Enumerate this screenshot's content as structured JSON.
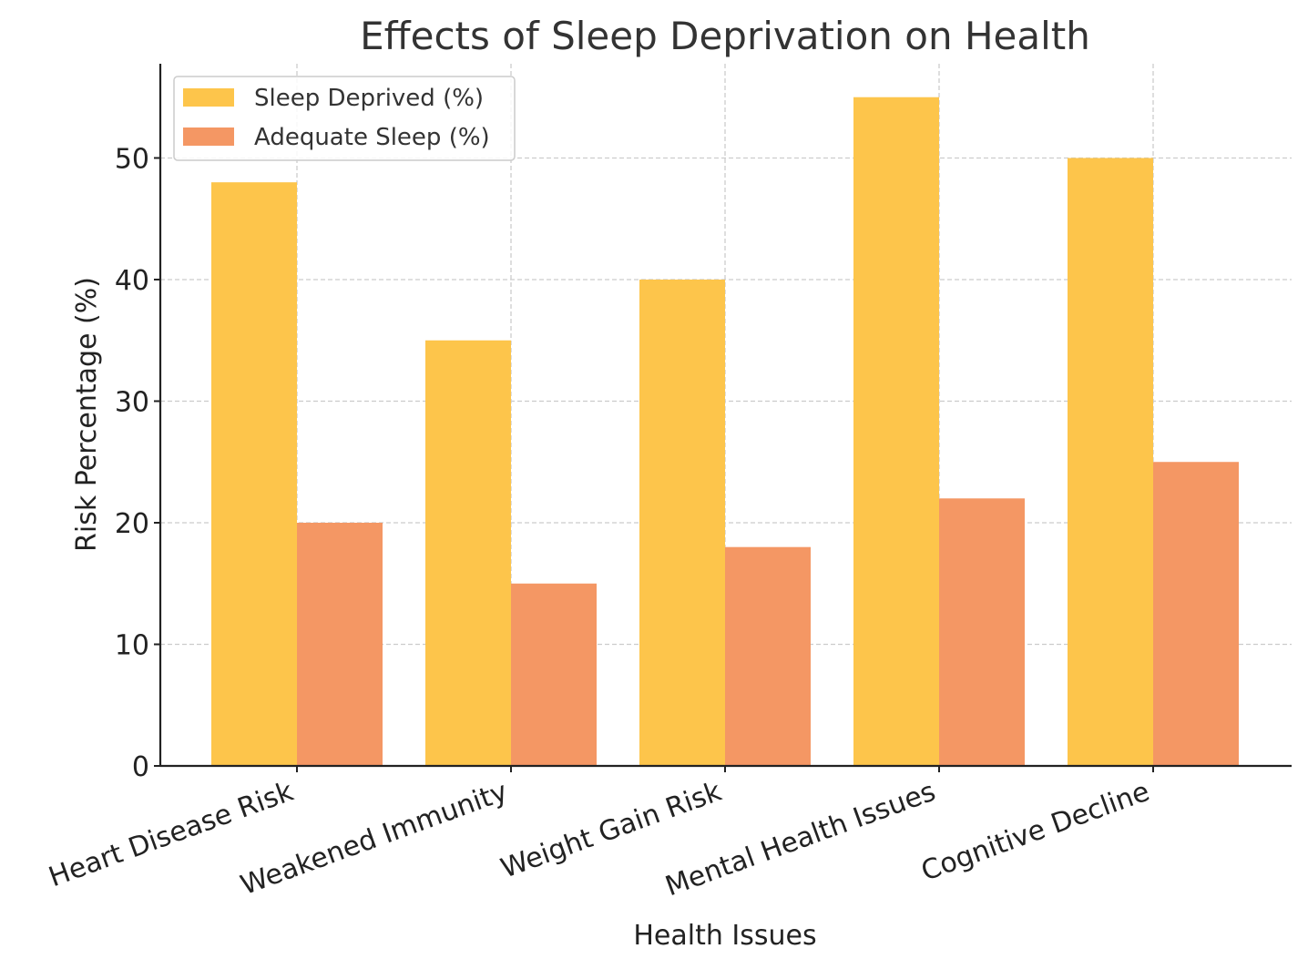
{
  "chart_data": {
    "type": "bar",
    "title": "Effects of Sleep Deprivation on Health",
    "xlabel": "Health Issues",
    "ylabel": "Risk Percentage (%)",
    "categories": [
      "Heart Disease Risk",
      "Weakened Immunity",
      "Weight Gain Risk",
      "Mental Health Issues",
      "Cognitive Decline"
    ],
    "series": [
      {
        "name": "Sleep Deprived (%)",
        "color": "#fdc54b",
        "values": [
          48,
          35,
          40,
          55,
          50
        ]
      },
      {
        "name": "Adequate Sleep (%)",
        "color": "#f49764",
        "values": [
          20,
          15,
          18,
          22,
          25
        ]
      }
    ],
    "yticks": [
      "0",
      "10",
      "20",
      "30",
      "40",
      "50"
    ],
    "ylim": [
      0,
      57.75
    ],
    "grid": true,
    "legend": "top-left"
  }
}
